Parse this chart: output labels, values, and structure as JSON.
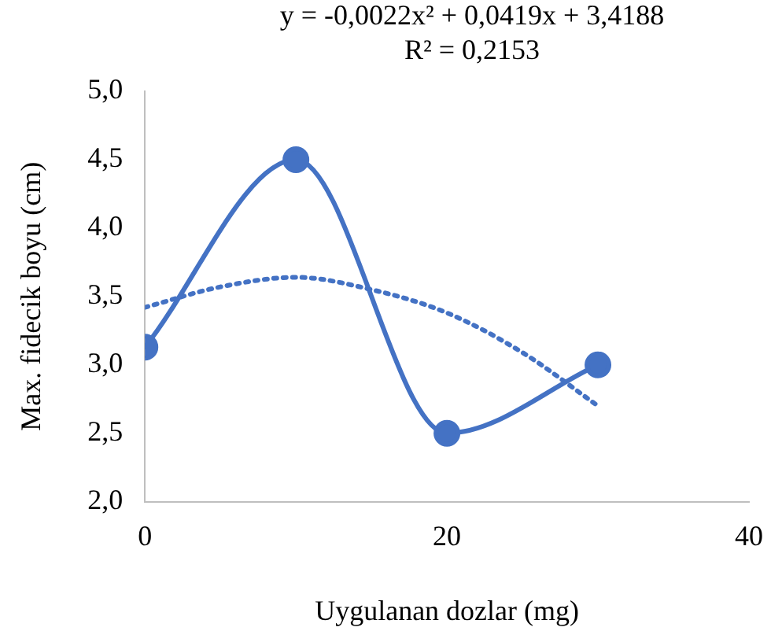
{
  "chart_data": {
    "type": "line",
    "xlabel": "Uygulanan dozlar (mg)",
    "ylabel": "Max. fidecik boyu (cm)",
    "annotations": [
      "y = -0,0022x² + 0,0419x + 3,4188",
      "R² = 0,2153"
    ],
    "xlim": [
      0,
      40
    ],
    "xticks": [
      0,
      20,
      40
    ],
    "ylim": [
      2,
      5
    ],
    "yticks": [
      {
        "value": 2,
        "label": "2,0"
      },
      {
        "value": 2.5,
        "label": "2,5"
      },
      {
        "value": 3,
        "label": "3,0"
      },
      {
        "value": 3.5,
        "label": "3,5"
      },
      {
        "value": 4,
        "label": "4,0"
      },
      {
        "value": 4.5,
        "label": "4,5"
      },
      {
        "value": 5,
        "label": "5,0"
      }
    ],
    "grid": false,
    "legend": false,
    "series": [
      {
        "type": "line",
        "color": "#4472c4",
        "marker": "circle",
        "line_style": "solid",
        "x": [
          0,
          10,
          20,
          30
        ],
        "values": [
          3.13,
          4.5,
          2.5,
          3.0
        ]
      },
      {
        "type": "line",
        "color": "#4472c4",
        "marker": "none",
        "line_style": "dotted",
        "x": [
          0,
          5,
          10,
          15,
          20,
          25,
          30
        ],
        "values": [
          3.42,
          3.57,
          3.64,
          3.55,
          3.38,
          3.09,
          2.7
        ]
      }
    ]
  }
}
